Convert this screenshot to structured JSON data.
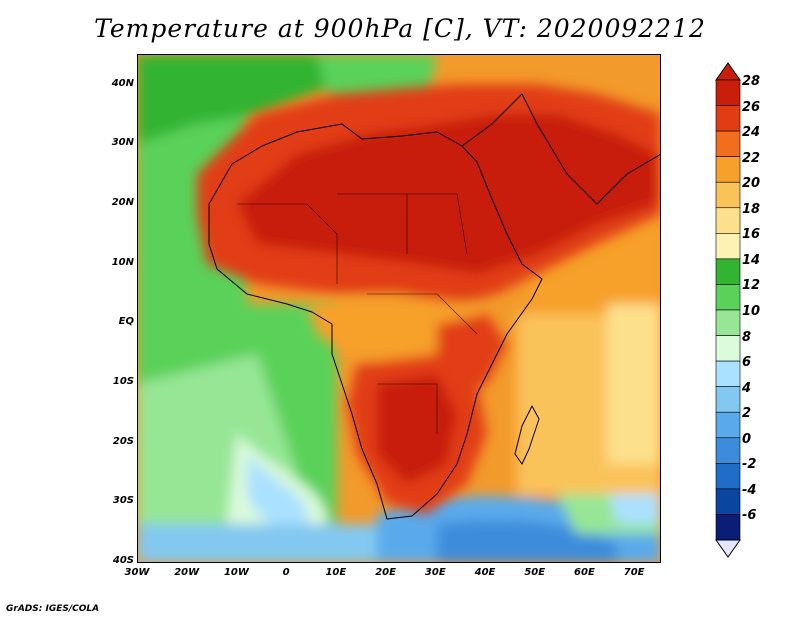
{
  "title": "Temperature at 900hPa [C], VT: 2020092212",
  "credit": "GrADS: IGES/COLA",
  "map": {
    "lon_range": [
      -30,
      75
    ],
    "lat_range": [
      -40,
      45
    ],
    "lat_labels": [
      "40N",
      "30N",
      "20N",
      "10N",
      "EQ",
      "10S",
      "20S",
      "30S",
      "40S"
    ],
    "lon_labels": [
      "30W",
      "20W",
      "10W",
      "0",
      "10E",
      "20E",
      "30E",
      "40E",
      "50E",
      "60E",
      "70E"
    ]
  },
  "colorbar": {
    "labels": [
      "28",
      "26",
      "24",
      "22",
      "20",
      "18",
      "16",
      "14",
      "12",
      "10",
      "8",
      "6",
      "4",
      "2",
      "0",
      "-2",
      "-4",
      "-6"
    ],
    "colors": [
      "#c81e0a",
      "#e13c14",
      "#f06e1e",
      "#f7a02c",
      "#fac35a",
      "#fde08c",
      "#fdf2b4",
      "#32b432",
      "#5ad25a",
      "#96e696",
      "#dcfadc",
      "#aae1ff",
      "#82c8f0",
      "#5aaaeb",
      "#3c8cdc",
      "#1e6ec8",
      "#0a46a0",
      "#0a1e78"
    ],
    "cap_top": "#c81e0a",
    "cap_bottom": "#e6e6fa"
  }
}
